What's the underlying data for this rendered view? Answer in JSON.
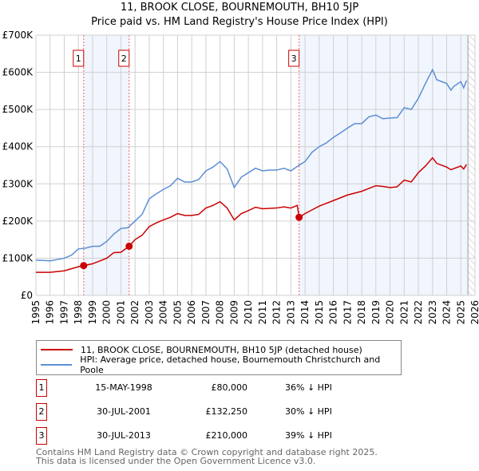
{
  "chart_data": {
    "type": "line",
    "title": "11, BROOK CLOSE, BOURNEMOUTH, BH10 5JP",
    "subtitle": "Price paid vs. HM Land Registry's House Price Index (HPI)",
    "xlim": [
      1995,
      2026
    ],
    "ylim": [
      0,
      700000
    ],
    "x_ticks": [
      "1995",
      "1996",
      "1997",
      "1998",
      "1999",
      "2000",
      "2001",
      "2002",
      "2003",
      "2004",
      "2005",
      "2006",
      "2007",
      "2008",
      "2009",
      "2010",
      "2011",
      "2012",
      "2013",
      "2014",
      "2015",
      "2016",
      "2017",
      "2018",
      "2019",
      "2020",
      "2021",
      "2022",
      "2023",
      "2024",
      "2025",
      "2026"
    ],
    "y_ticks": [
      {
        "v": 0,
        "label": "£0"
      },
      {
        "v": 100000,
        "label": "£100K"
      },
      {
        "v": 200000,
        "label": "£200K"
      },
      {
        "v": 300000,
        "label": "£300K"
      },
      {
        "v": 400000,
        "label": "£400K"
      },
      {
        "v": 500000,
        "label": "£500K"
      },
      {
        "v": 600000,
        "label": "£600K"
      },
      {
        "v": 700000,
        "label": "£700K"
      }
    ],
    "grid": true,
    "shaded_ranges": [
      [
        1998.37,
        2001.58
      ],
      [
        2013.58,
        2025.5
      ]
    ],
    "hatched_from": 2025.5,
    "series": [
      {
        "name": "11, BROOK CLOSE, BOURNEMOUTH, BH10 5JP (detached house)",
        "color": "#cc0000",
        "x": [
          1995,
          1996,
          1997,
          1998,
          1998.37,
          1999,
          2000,
          2000.5,
          2001,
          2001.58,
          2002,
          2002.5,
          2003,
          2003.5,
          2004,
          2004.5,
          2005,
          2005.5,
          2006,
          2006.5,
          2007,
          2007.5,
          2008,
          2008.5,
          2009,
          2009.5,
          2010,
          2010.5,
          2011,
          2012,
          2012.5,
          2013,
          2013.45,
          2013.58,
          2014,
          2014.5,
          2015,
          2016,
          2017,
          2018,
          2019,
          2019.5,
          2020,
          2020.5,
          2021,
          2021.5,
          2022,
          2022.5,
          2023,
          2023.3,
          2024,
          2024.3,
          2025,
          2025.2,
          2025.4
        ],
        "y": [
          62000,
          62000,
          66000,
          77000,
          80000,
          85000,
          100000,
          115000,
          116000,
          132250,
          150000,
          162000,
          185000,
          195000,
          203000,
          210000,
          220000,
          215000,
          215000,
          218000,
          235000,
          242000,
          252000,
          235000,
          203000,
          220000,
          228000,
          237000,
          233000,
          235000,
          238000,
          235000,
          242000,
          210000,
          220000,
          230000,
          240000,
          255000,
          270000,
          280000,
          295000,
          293000,
          290000,
          292000,
          310000,
          305000,
          330000,
          348000,
          370000,
          355000,
          345000,
          338000,
          348000,
          340000,
          352000
        ]
      },
      {
        "name": "HPI: Average price, detached house, Bournemouth Christchurch and Poole",
        "color": "#5b8fd4",
        "x": [
          1995,
          1996,
          1997,
          1997.5,
          1998,
          1998.5,
          1999,
          1999.5,
          2000,
          2000.5,
          2001,
          2001.5,
          2002,
          2002.5,
          2003,
          2003.5,
          2004,
          2004.5,
          2005,
          2005.5,
          2006,
          2006.5,
          2007,
          2007.5,
          2008,
          2008.5,
          2009,
          2009.5,
          2010,
          2010.5,
          2011,
          2011.5,
          2012,
          2012.5,
          2013,
          2013.5,
          2014,
          2014.5,
          2015,
          2015.5,
          2016,
          2016.5,
          2017,
          2017.5,
          2018,
          2018.5,
          2019,
          2019.5,
          2020,
          2020.5,
          2021,
          2021.5,
          2022,
          2022.5,
          2023,
          2023.3,
          2024,
          2024.3,
          2024.5,
          2025,
          2025.2,
          2025.4
        ],
        "y": [
          95000,
          93000,
          100000,
          108000,
          125000,
          127000,
          132000,
          132000,
          145000,
          165000,
          180000,
          182000,
          200000,
          218000,
          260000,
          273000,
          285000,
          295000,
          315000,
          305000,
          305000,
          312000,
          335000,
          345000,
          360000,
          340000,
          290000,
          318000,
          330000,
          342000,
          335000,
          337000,
          337000,
          342000,
          335000,
          348000,
          360000,
          385000,
          400000,
          410000,
          425000,
          437000,
          450000,
          462000,
          462000,
          480000,
          485000,
          475000,
          477000,
          478000,
          505000,
          500000,
          530000,
          570000,
          607000,
          580000,
          570000,
          552000,
          562000,
          575000,
          558000,
          578000
        ]
      }
    ],
    "sales": [
      {
        "label": "1",
        "x": 1998.37,
        "y": 80000,
        "date": "15-MAY-1998",
        "price": "£80,000",
        "hpi": "36% ↓ HPI"
      },
      {
        "label": "2",
        "x": 2001.58,
        "y": 132250,
        "date": "30-JUL-2001",
        "price": "£132,250",
        "hpi": "30% ↓ HPI"
      },
      {
        "label": "3",
        "x": 2013.58,
        "y": 210000,
        "date": "30-JUL-2013",
        "price": "£210,000",
        "hpi": "39% ↓ HPI"
      }
    ]
  },
  "footer": {
    "line1": "Contains HM Land Registry data © Crown copyright and database right 2025.",
    "line2": "This data is licensed under the Open Government Licence v3.0."
  }
}
